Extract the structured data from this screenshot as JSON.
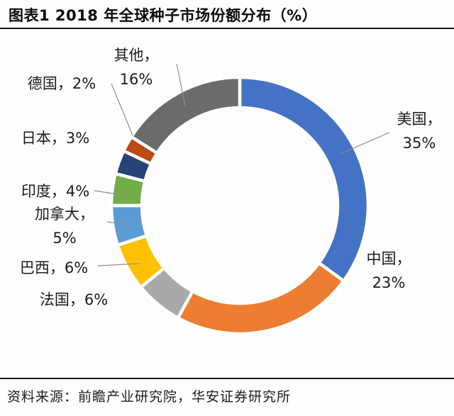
{
  "title": "图表1 2018 年全球种子市场份额分布（%）",
  "source": "资料来源：前瞻产业研究院，华安证券研究所",
  "chart_data": {
    "type": "pie",
    "subtype": "donut",
    "title": "2018 年全球种子市场份额分布（%）",
    "unit": "percent",
    "start_angle": "top",
    "direction": "clockwise",
    "donut_hole_ratio": 0.76,
    "legend": "none",
    "label_style": "category name + percent with leader lines",
    "categories": [
      "美国",
      "中国",
      "法国",
      "巴西",
      "加拿大",
      "印度",
      "日本",
      "德国",
      "其他"
    ],
    "values": [
      35,
      23,
      6,
      6,
      5,
      4,
      3,
      2,
      16
    ],
    "slices": [
      {
        "id": "usa",
        "name": "美国",
        "value": 35,
        "color": "#4472C4",
        "label_lines": [
          "美国，",
          "35%"
        ]
      },
      {
        "id": "china",
        "name": "中国",
        "value": 23,
        "color": "#ED7D31",
        "label_lines": [
          "中国，",
          "23%"
        ]
      },
      {
        "id": "france",
        "name": "法国",
        "value": 6,
        "color": "#A9A9A9",
        "label_lines": [
          "法国，6%"
        ]
      },
      {
        "id": "brazil",
        "name": "巴西",
        "value": 6,
        "color": "#FFC000",
        "label_lines": [
          "巴西，6%"
        ]
      },
      {
        "id": "canada",
        "name": "加拿大",
        "value": 5,
        "color": "#5B9BD5",
        "label_lines": [
          "加拿大，",
          "5%"
        ]
      },
      {
        "id": "india",
        "name": "印度",
        "value": 4,
        "color": "#70AD47",
        "label_lines": [
          "印度，4%"
        ]
      },
      {
        "id": "japan",
        "name": "日本",
        "value": 3,
        "color": "#264478",
        "label_lines": [
          "日本，3%"
        ]
      },
      {
        "id": "germany",
        "name": "德国",
        "value": 2,
        "color": "#BB4A14",
        "label_lines": [
          "德国，2%"
        ]
      },
      {
        "id": "others",
        "name": "其他",
        "value": 16,
        "color": "#6B6B6B",
        "label_lines": [
          "其他，",
          "16%"
        ]
      }
    ]
  }
}
